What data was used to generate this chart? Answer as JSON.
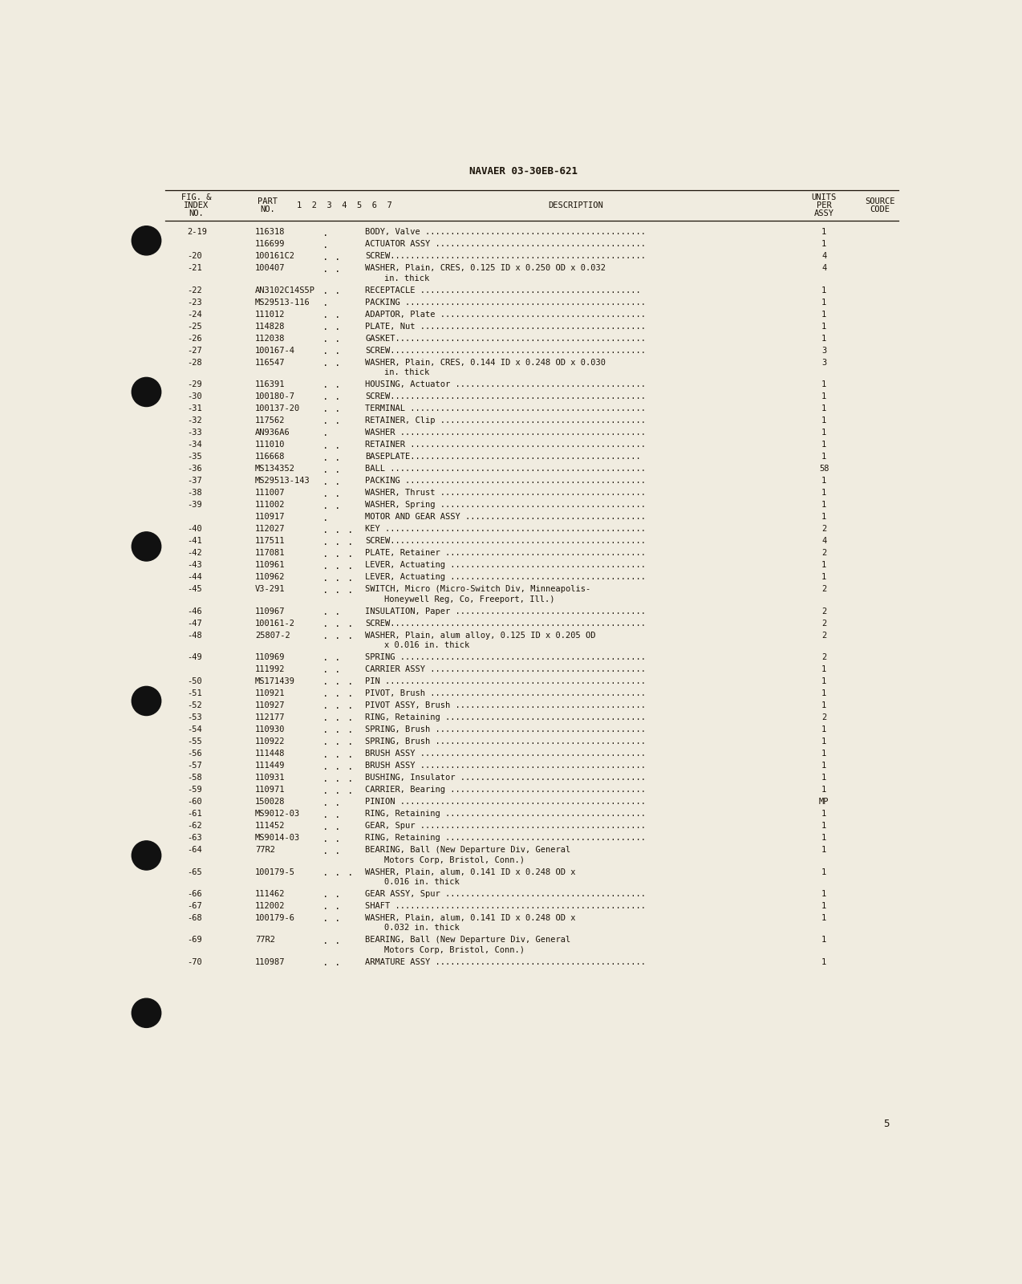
{
  "header_title": "NAVAER 03-30EB-621",
  "rows": [
    {
      "fig": "2-19",
      "part": "116318",
      "ind": 1,
      "desc": "BODY, Valve ............................................",
      "qty": "1",
      "src": ""
    },
    {
      "fig": "",
      "part": "116699",
      "ind": 1,
      "desc": "ACTUATOR ASSY ..........................................",
      "qty": "1",
      "src": ""
    },
    {
      "fig": "-20",
      "part": "100161C2",
      "ind": 2,
      "desc": "SCREW...................................................",
      "qty": "4",
      "src": ""
    },
    {
      "fig": "-21",
      "part": "100407",
      "ind": 2,
      "desc": "WASHER, Plain, CRES, 0.125 ID x 0.250 OD x 0.032\n                in. thick",
      "qty": "4",
      "src": ""
    },
    {
      "fig": "-22",
      "part": "AN3102C14S5P",
      "ind": 2,
      "desc": "RECEPTACLE ............................................",
      "qty": "1",
      "src": ""
    },
    {
      "fig": "-23",
      "part": "MS29513-116",
      "ind": 1,
      "desc": "PACKING ................................................",
      "qty": "1",
      "src": ""
    },
    {
      "fig": "-24",
      "part": "111012",
      "ind": 2,
      "desc": "ADAPTOR, Plate .........................................",
      "qty": "1",
      "src": ""
    },
    {
      "fig": "-25",
      "part": "114828",
      "ind": 2,
      "desc": "PLATE, Nut .............................................",
      "qty": "1",
      "src": ""
    },
    {
      "fig": "-26",
      "part": "112038",
      "ind": 2,
      "desc": "GASKET..................................................",
      "qty": "1",
      "src": ""
    },
    {
      "fig": "-27",
      "part": "100167-4",
      "ind": 2,
      "desc": "SCREW...................................................",
      "qty": "3",
      "src": ""
    },
    {
      "fig": "-28",
      "part": "116547",
      "ind": 2,
      "desc": "WASHER, Plain, CRES, 0.144 ID x 0.248 OD x 0.030\n                in. thick",
      "qty": "3",
      "src": ""
    },
    {
      "fig": "-29",
      "part": "116391",
      "ind": 2,
      "desc": "HOUSING, Actuator ......................................",
      "qty": "1",
      "src": ""
    },
    {
      "fig": "-30",
      "part": "100180-7",
      "ind": 2,
      "desc": "SCREW...................................................",
      "qty": "1",
      "src": ""
    },
    {
      "fig": "-31",
      "part": "100137-20",
      "ind": 2,
      "desc": "TERMINAL ...............................................",
      "qty": "1",
      "src": ""
    },
    {
      "fig": "-32",
      "part": "117562",
      "ind": 2,
      "desc": "RETAINER, Clip .........................................",
      "qty": "1",
      "src": ""
    },
    {
      "fig": "-33",
      "part": "AN936A6",
      "ind": 1,
      "desc": "WASHER .................................................",
      "qty": "1",
      "src": ""
    },
    {
      "fig": "-34",
      "part": "111010",
      "ind": 2,
      "desc": "RETAINER ...............................................",
      "qty": "1",
      "src": ""
    },
    {
      "fig": "-35",
      "part": "116668",
      "ind": 2,
      "desc": "BASEPLATE..............................................",
      "qty": "1",
      "src": ""
    },
    {
      "fig": "-36",
      "part": "MS134352",
      "ind": 2,
      "desc": "BALL ...................................................",
      "qty": "58",
      "src": ""
    },
    {
      "fig": "-37",
      "part": "MS29513-143",
      "ind": 2,
      "desc": "PACKING ................................................",
      "qty": "1",
      "src": ""
    },
    {
      "fig": "-38",
      "part": "111007",
      "ind": 2,
      "desc": "WASHER, Thrust .........................................",
      "qty": "1",
      "src": ""
    },
    {
      "fig": "-39",
      "part": "111002",
      "ind": 2,
      "desc": "WASHER, Spring .........................................",
      "qty": "1",
      "src": ""
    },
    {
      "fig": "",
      "part": "110917",
      "ind": 1,
      "desc": "MOTOR AND GEAR ASSY ....................................",
      "qty": "1",
      "src": ""
    },
    {
      "fig": "-40",
      "part": "112027",
      "ind": 3,
      "desc": "KEY ....................................................",
      "qty": "2",
      "src": ""
    },
    {
      "fig": "-41",
      "part": "117511",
      "ind": 3,
      "desc": "SCREW...................................................",
      "qty": "4",
      "src": ""
    },
    {
      "fig": "-42",
      "part": "117081",
      "ind": 3,
      "desc": "PLATE, Retainer ........................................",
      "qty": "2",
      "src": ""
    },
    {
      "fig": "-43",
      "part": "110961",
      "ind": 3,
      "desc": "LEVER, Actuating .......................................",
      "qty": "1",
      "src": ""
    },
    {
      "fig": "-44",
      "part": "110962",
      "ind": 3,
      "desc": "LEVER, Actuating .......................................",
      "qty": "1",
      "src": ""
    },
    {
      "fig": "-45",
      "part": "V3-291",
      "ind": 3,
      "desc": "SWITCH, Micro (Micro-Switch Div, Minneapolis-\n                Honeywell Reg, Co, Freeport, Ill.)",
      "qty": "2",
      "src": ""
    },
    {
      "fig": "-46",
      "part": "110967",
      "ind": 2,
      "desc": "INSULATION, Paper ......................................",
      "qty": "2",
      "src": ""
    },
    {
      "fig": "-47",
      "part": "100161-2",
      "ind": 3,
      "desc": "SCREW...................................................",
      "qty": "2",
      "src": ""
    },
    {
      "fig": "-48",
      "part": "25807-2",
      "ind": 3,
      "desc": "WASHER, Plain, alum alloy, 0.125 ID x 0.205 OD\n                x 0.016 in. thick",
      "qty": "2",
      "src": ""
    },
    {
      "fig": "-49",
      "part": "110969",
      "ind": 2,
      "desc": "SPRING .................................................",
      "qty": "2",
      "src": ""
    },
    {
      "fig": "",
      "part": "111992",
      "ind": 2,
      "desc": "CARRIER ASSY ...........................................",
      "qty": "1",
      "src": ""
    },
    {
      "fig": "-50",
      "part": "MS171439",
      "ind": 3,
      "desc": "PIN ....................................................",
      "qty": "1",
      "src": ""
    },
    {
      "fig": "-51",
      "part": "110921",
      "ind": 3,
      "desc": "PIVOT, Brush ...........................................",
      "qty": "1",
      "src": ""
    },
    {
      "fig": "-52",
      "part": "110927",
      "ind": 3,
      "desc": "PIVOT ASSY, Brush ......................................",
      "qty": "1",
      "src": ""
    },
    {
      "fig": "-53",
      "part": "112177",
      "ind": 3,
      "desc": "RING, Retaining ........................................",
      "qty": "2",
      "src": ""
    },
    {
      "fig": "-54",
      "part": "110930",
      "ind": 3,
      "desc": "SPRING, Brush ..........................................",
      "qty": "1",
      "src": ""
    },
    {
      "fig": "-55",
      "part": "110922",
      "ind": 3,
      "desc": "SPRING, Brush ..........................................",
      "qty": "1",
      "src": ""
    },
    {
      "fig": "-56",
      "part": "111448",
      "ind": 3,
      "desc": "BRUSH ASSY .............................................",
      "qty": "1",
      "src": ""
    },
    {
      "fig": "-57",
      "part": "111449",
      "ind": 3,
      "desc": "BRUSH ASSY .............................................",
      "qty": "1",
      "src": ""
    },
    {
      "fig": "-58",
      "part": "110931",
      "ind": 3,
      "desc": "BUSHING, Insulator .....................................",
      "qty": "1",
      "src": ""
    },
    {
      "fig": "-59",
      "part": "110971",
      "ind": 3,
      "desc": "CARRIER, Bearing .......................................",
      "qty": "1",
      "src": ""
    },
    {
      "fig": "-60",
      "part": "150028",
      "ind": 2,
      "desc": "PINION .................................................",
      "qty": "MP",
      "src": ""
    },
    {
      "fig": "-61",
      "part": "MS9012-03",
      "ind": 2,
      "desc": "RING, Retaining ........................................",
      "qty": "1",
      "src": ""
    },
    {
      "fig": "-62",
      "part": "111452",
      "ind": 2,
      "desc": "GEAR, Spur .............................................",
      "qty": "1",
      "src": ""
    },
    {
      "fig": "-63",
      "part": "MS9014-03",
      "ind": 2,
      "desc": "RING, Retaining ........................................",
      "qty": "1",
      "src": ""
    },
    {
      "fig": "-64",
      "part": "77R2",
      "ind": 2,
      "desc": "BEARING, Ball (New Departure Div, General\n                Motors Corp, Bristol, Conn.)",
      "qty": "1",
      "src": ""
    },
    {
      "fig": "-65",
      "part": "100179-5",
      "ind": 3,
      "desc": "WASHER, Plain, alum, 0.141 ID x 0.248 OD x\n                0.016 in. thick",
      "qty": "1",
      "src": ""
    },
    {
      "fig": "-66",
      "part": "111462",
      "ind": 2,
      "desc": "GEAR ASSY, Spur ........................................",
      "qty": "1",
      "src": ""
    },
    {
      "fig": "-67",
      "part": "112002",
      "ind": 2,
      "desc": "SHAFT ..................................................",
      "qty": "1",
      "src": ""
    },
    {
      "fig": "-68",
      "part": "100179-6",
      "ind": 2,
      "desc": "WASHER, Plain, alum, 0.141 ID x 0.248 OD x\n                0.032 in. thick",
      "qty": "1",
      "src": ""
    },
    {
      "fig": "-69",
      "part": "77R2",
      "ind": 2,
      "desc": "BEARING, Ball (New Departure Div, General\n                Motors Corp, Bristol, Conn.)",
      "qty": "1",
      "src": ""
    },
    {
      "fig": "-70",
      "part": "110987",
      "ind": 2,
      "desc": "ARMATURE ASSY ..........................................",
      "qty": "1",
      "src": ""
    }
  ],
  "page_number": "5",
  "bg_color": "#f0ece0",
  "text_color": "#1a1208",
  "circle_color": "#111111"
}
